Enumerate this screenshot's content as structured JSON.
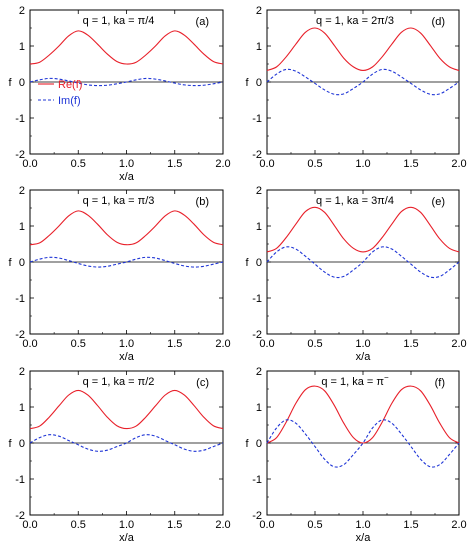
{
  "colors": {
    "re": "#e8202a",
    "im": "#1f35d6",
    "axis": "#000000"
  },
  "chart_data": [
    {
      "type": "line",
      "title": "q = 1, ka = π/4",
      "tag": "(a)",
      "xlabel": "x/a",
      "ylabel": "f",
      "xlim": [
        0,
        2
      ],
      "ylim": [
        -2,
        2
      ],
      "xticks": [
        "0.0",
        "0.5",
        "1.0",
        "1.5",
        "2.0"
      ],
      "yticks": [
        "-2",
        "-1",
        "0",
        "1",
        "2"
      ],
      "zero_line": true,
      "grid": false,
      "legend": {
        "position": "left",
        "entries": [
          "Re(f)",
          "Im(f)"
        ]
      },
      "series": [
        {
          "name": "Re(f)",
          "style": "solid",
          "x": [
            0,
            0.1,
            0.2,
            0.3,
            0.4,
            0.5,
            0.6,
            0.7,
            0.8,
            0.9,
            1.0,
            1.1,
            1.2,
            1.3,
            1.4,
            1.5,
            1.6,
            1.7,
            1.8,
            1.9,
            2.0
          ],
          "y": [
            0.5,
            0.55,
            0.75,
            1.0,
            1.28,
            1.42,
            1.3,
            1.05,
            0.78,
            0.57,
            0.5,
            0.55,
            0.75,
            1.0,
            1.28,
            1.42,
            1.3,
            1.05,
            0.78,
            0.57,
            0.5
          ]
        },
        {
          "name": "Im(f)",
          "style": "dashed",
          "x": [
            0,
            0.1,
            0.2,
            0.3,
            0.4,
            0.5,
            0.6,
            0.7,
            0.8,
            0.9,
            1.0,
            1.1,
            1.2,
            1.3,
            1.4,
            1.5,
            1.6,
            1.7,
            1.8,
            1.9,
            2.0
          ],
          "y": [
            0,
            0.06,
            0.1,
            0.08,
            0.03,
            -0.03,
            -0.08,
            -0.1,
            -0.09,
            -0.05,
            0,
            0.06,
            0.1,
            0.08,
            0.03,
            -0.03,
            -0.08,
            -0.1,
            -0.09,
            -0.05,
            0
          ]
        }
      ]
    },
    {
      "type": "line",
      "title": "q = 1, ka = 2π/3",
      "tag": "(d)",
      "xlabel": "",
      "ylabel": "f",
      "xlim": [
        0,
        2
      ],
      "ylim": [
        -2,
        2
      ],
      "xticks": [
        "0.0",
        "0.5",
        "1.0",
        "1.5",
        "2.0"
      ],
      "yticks": [
        "-2",
        "-1",
        "0",
        "1",
        "2"
      ],
      "zero_line": true,
      "grid": false,
      "series": [
        {
          "name": "Re(f)",
          "style": "solid",
          "x": [
            0,
            0.1,
            0.2,
            0.3,
            0.4,
            0.5,
            0.6,
            0.7,
            0.8,
            0.9,
            1.0,
            1.1,
            1.2,
            1.3,
            1.4,
            1.5,
            1.6,
            1.7,
            1.8,
            1.9,
            2.0
          ],
          "y": [
            0.32,
            0.42,
            0.7,
            1.05,
            1.38,
            1.5,
            1.36,
            1.02,
            0.66,
            0.42,
            0.32,
            0.42,
            0.7,
            1.05,
            1.38,
            1.5,
            1.36,
            1.02,
            0.66,
            0.42,
            0.32
          ]
        },
        {
          "name": "Im(f)",
          "style": "dashed",
          "x": [
            0,
            0.1,
            0.2,
            0.3,
            0.4,
            0.5,
            0.6,
            0.7,
            0.8,
            0.9,
            1.0,
            1.1,
            1.2,
            1.3,
            1.4,
            1.5,
            1.6,
            1.7,
            1.8,
            1.9,
            2.0
          ],
          "y": [
            0,
            0.22,
            0.35,
            0.3,
            0.14,
            -0.04,
            -0.22,
            -0.34,
            -0.33,
            -0.18,
            0,
            0.22,
            0.35,
            0.3,
            0.14,
            -0.04,
            -0.22,
            -0.34,
            -0.33,
            -0.18,
            0
          ]
        }
      ]
    },
    {
      "type": "line",
      "title": "q = 1, ka = π/3",
      "tag": "(b)",
      "xlabel": "x/a",
      "ylabel": "f",
      "xlim": [
        0,
        2
      ],
      "ylim": [
        -2,
        2
      ],
      "xticks": [
        "0.0",
        "0.5",
        "1.0",
        "1.5",
        "2.0"
      ],
      "yticks": [
        "-2",
        "-1",
        "0",
        "1",
        "2"
      ],
      "zero_line": true,
      "grid": false,
      "series": [
        {
          "name": "Re(f)",
          "style": "solid",
          "x": [
            0,
            0.1,
            0.2,
            0.3,
            0.4,
            0.5,
            0.6,
            0.7,
            0.8,
            0.9,
            1.0,
            1.1,
            1.2,
            1.3,
            1.4,
            1.5,
            1.6,
            1.7,
            1.8,
            1.9,
            2.0
          ],
          "y": [
            0.48,
            0.53,
            0.74,
            1.0,
            1.28,
            1.42,
            1.3,
            1.05,
            0.76,
            0.55,
            0.48,
            0.53,
            0.74,
            1.0,
            1.28,
            1.42,
            1.3,
            1.05,
            0.76,
            0.55,
            0.48
          ]
        },
        {
          "name": "Im(f)",
          "style": "dashed",
          "x": [
            0,
            0.1,
            0.2,
            0.3,
            0.4,
            0.5,
            0.6,
            0.7,
            0.8,
            0.9,
            1.0,
            1.1,
            1.2,
            1.3,
            1.4,
            1.5,
            1.6,
            1.7,
            1.8,
            1.9,
            2.0
          ],
          "y": [
            0,
            0.08,
            0.13,
            0.11,
            0.04,
            -0.04,
            -0.11,
            -0.14,
            -0.12,
            -0.06,
            0,
            0.08,
            0.13,
            0.11,
            0.04,
            -0.04,
            -0.11,
            -0.14,
            -0.12,
            -0.06,
            0
          ]
        }
      ]
    },
    {
      "type": "line",
      "title": "q = 1, ka = 3π/4",
      "tag": "(e)",
      "xlabel": "x/a",
      "ylabel": "f",
      "xlim": [
        0,
        2
      ],
      "ylim": [
        -2,
        2
      ],
      "xticks": [
        "0.0",
        "0.5",
        "1.0",
        "1.5",
        "2.0"
      ],
      "yticks": [
        "-2",
        "-1",
        "0",
        "1",
        "2"
      ],
      "zero_line": true,
      "grid": false,
      "series": [
        {
          "name": "Re(f)",
          "style": "solid",
          "x": [
            0,
            0.1,
            0.2,
            0.3,
            0.4,
            0.5,
            0.6,
            0.7,
            0.8,
            0.9,
            1.0,
            1.1,
            1.2,
            1.3,
            1.4,
            1.5,
            1.6,
            1.7,
            1.8,
            1.9,
            2.0
          ],
          "y": [
            0.28,
            0.38,
            0.68,
            1.05,
            1.4,
            1.52,
            1.38,
            1.02,
            0.64,
            0.38,
            0.28,
            0.38,
            0.68,
            1.05,
            1.4,
            1.52,
            1.38,
            1.02,
            0.64,
            0.38,
            0.28
          ]
        },
        {
          "name": "Im(f)",
          "style": "dashed",
          "x": [
            0,
            0.1,
            0.2,
            0.3,
            0.4,
            0.5,
            0.6,
            0.7,
            0.8,
            0.9,
            1.0,
            1.1,
            1.2,
            1.3,
            1.4,
            1.5,
            1.6,
            1.7,
            1.8,
            1.9,
            2.0
          ],
          "y": [
            0,
            0.28,
            0.42,
            0.36,
            0.16,
            -0.06,
            -0.28,
            -0.42,
            -0.4,
            -0.22,
            0,
            0.28,
            0.42,
            0.36,
            0.16,
            -0.06,
            -0.28,
            -0.42,
            -0.4,
            -0.22,
            0
          ]
        }
      ]
    },
    {
      "type": "line",
      "title": "q = 1, ka = π/2",
      "tag": "(c)",
      "xlabel": "x/a",
      "ylabel": "f",
      "xlim": [
        0,
        2
      ],
      "ylim": [
        -2,
        2
      ],
      "xticks": [
        "0.0",
        "0.5",
        "1.0",
        "1.5",
        "2.0"
      ],
      "yticks": [
        "-2",
        "-1",
        "0",
        "1",
        "2"
      ],
      "zero_line": true,
      "grid": false,
      "series": [
        {
          "name": "Re(f)",
          "style": "solid",
          "x": [
            0,
            0.1,
            0.2,
            0.3,
            0.4,
            0.5,
            0.6,
            0.7,
            0.8,
            0.9,
            1.0,
            1.1,
            1.2,
            1.3,
            1.4,
            1.5,
            1.6,
            1.7,
            1.8,
            1.9,
            2.0
          ],
          "y": [
            0.4,
            0.47,
            0.72,
            1.03,
            1.33,
            1.46,
            1.33,
            1.04,
            0.72,
            0.48,
            0.4,
            0.47,
            0.72,
            1.03,
            1.33,
            1.46,
            1.33,
            1.04,
            0.72,
            0.48,
            0.4
          ]
        },
        {
          "name": "Im(f)",
          "style": "dashed",
          "x": [
            0,
            0.1,
            0.2,
            0.3,
            0.4,
            0.5,
            0.6,
            0.7,
            0.8,
            0.9,
            1.0,
            1.1,
            1.2,
            1.3,
            1.4,
            1.5,
            1.6,
            1.7,
            1.8,
            1.9,
            2.0
          ],
          "y": [
            0,
            0.15,
            0.23,
            0.19,
            0.07,
            -0.05,
            -0.17,
            -0.23,
            -0.2,
            -0.1,
            0,
            0.15,
            0.23,
            0.19,
            0.07,
            -0.05,
            -0.17,
            -0.23,
            -0.2,
            -0.1,
            0
          ]
        }
      ]
    },
    {
      "type": "line",
      "title": "q = 1, ka = π",
      "title_sup": "−",
      "tag": "(f)",
      "xlabel": "x/a",
      "ylabel": "f",
      "xlim": [
        0,
        2
      ],
      "ylim": [
        -2,
        2
      ],
      "xticks": [
        "0.0",
        "0.5",
        "1.0",
        "1.5",
        "2.0"
      ],
      "yticks": [
        "-2",
        "-1",
        "0",
        "1",
        "2"
      ],
      "zero_line": true,
      "grid": false,
      "series": [
        {
          "name": "Re(f)",
          "style": "solid",
          "x": [
            0,
            0.1,
            0.2,
            0.3,
            0.4,
            0.5,
            0.6,
            0.7,
            0.8,
            0.9,
            1.0,
            1.1,
            1.2,
            1.3,
            1.4,
            1.5,
            1.6,
            1.7,
            1.8,
            1.9,
            2.0
          ],
          "y": [
            0.0,
            0.15,
            0.58,
            1.1,
            1.48,
            1.58,
            1.45,
            1.05,
            0.55,
            0.15,
            0.0,
            0.15,
            0.58,
            1.1,
            1.48,
            1.58,
            1.45,
            1.05,
            0.55,
            0.15,
            0.0
          ]
        },
        {
          "name": "Im(f)",
          "style": "dashed",
          "x": [
            0,
            0.1,
            0.2,
            0.3,
            0.4,
            0.5,
            0.6,
            0.7,
            0.8,
            0.9,
            1.0,
            1.1,
            1.2,
            1.3,
            1.4,
            1.5,
            1.6,
            1.7,
            1.8,
            1.9,
            2.0
          ],
          "y": [
            0,
            0.42,
            0.64,
            0.55,
            0.25,
            -0.1,
            -0.45,
            -0.66,
            -0.6,
            -0.32,
            0,
            0.42,
            0.64,
            0.55,
            0.25,
            -0.1,
            -0.45,
            -0.66,
            -0.6,
            -0.32,
            0
          ]
        }
      ]
    }
  ]
}
